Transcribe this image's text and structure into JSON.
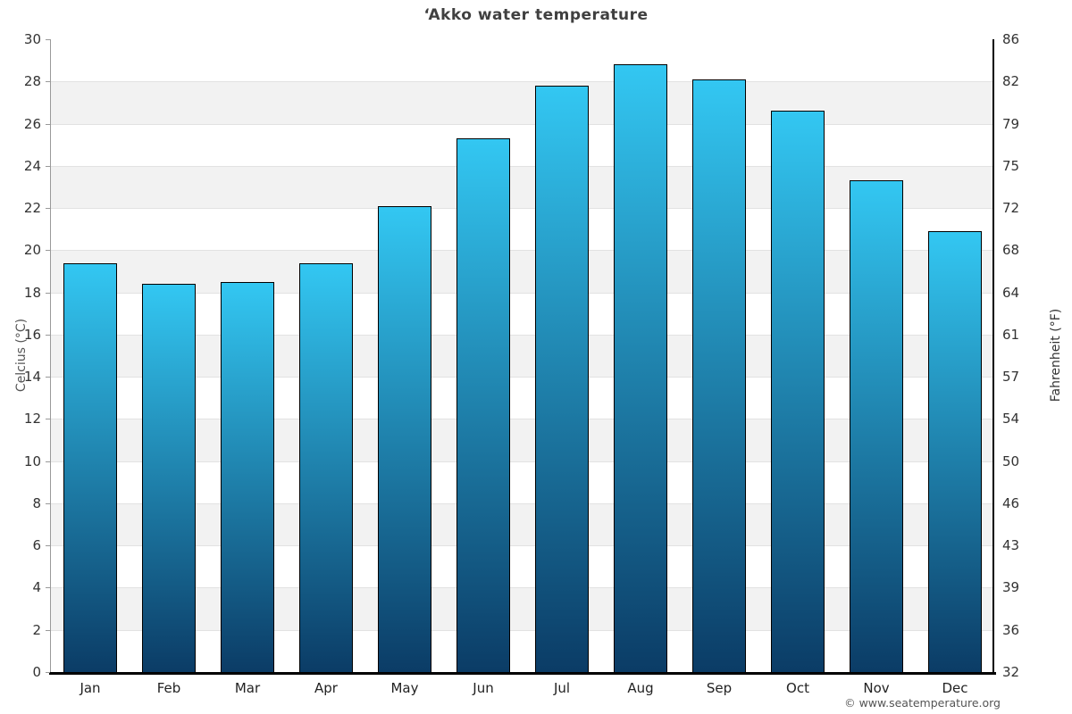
{
  "title": "‘Akko water temperature",
  "footer": "© www.seatemperature.org",
  "axes": {
    "left_label": "Celcius (°C)",
    "right_label": "Fahrenheit (°F)"
  },
  "chart_data": {
    "type": "bar",
    "title": "‘Akko water temperature",
    "categories": [
      "Jan",
      "Feb",
      "Mar",
      "Apr",
      "May",
      "Jun",
      "Jul",
      "Aug",
      "Sep",
      "Oct",
      "Nov",
      "Dec"
    ],
    "values": [
      19.4,
      18.4,
      18.5,
      19.4,
      22.1,
      25.3,
      27.8,
      28.8,
      28.1,
      26.6,
      23.3,
      20.9
    ],
    "unit": "°C",
    "ylabel_left": "Celcius (°C)",
    "ylabel_right": "Fahrenheit (°F)",
    "ylim": [
      0,
      30
    ],
    "yticks_left": [
      30,
      28,
      26,
      24,
      22,
      20,
      18,
      16,
      14,
      12,
      10,
      8,
      6,
      4,
      2,
      0
    ],
    "yticks_right": [
      86,
      82,
      79,
      75,
      72,
      68,
      64,
      61,
      57,
      54,
      50,
      46,
      43,
      39,
      36,
      32
    ],
    "grid": "horizontal-bands-alternating",
    "legend": "none",
    "colors": {
      "bar_top": "#33c7f2",
      "bar_bottom": "#0b3c66",
      "bar_border": "#000000",
      "band_gray": "#f2f2f2",
      "gridline": "#e2e2e2",
      "title_text": "#404040",
      "tick_text": "#333333",
      "footer_text": "#555555"
    }
  }
}
